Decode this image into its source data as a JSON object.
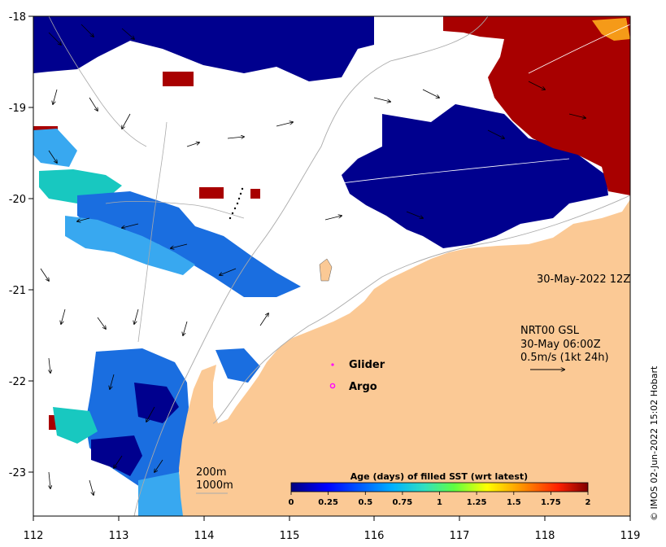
{
  "map": {
    "x_ticks": [
      "112",
      "113",
      "114",
      "115",
      "116",
      "117",
      "118",
      "119"
    ],
    "y_ticks": [
      "-18",
      "-19",
      "-20",
      "-21",
      "-22",
      "-23"
    ],
    "timestamp": "30-May-2022 12Z",
    "current_source": "NRT00 GSL",
    "current_time": "30-May 06:00Z",
    "current_scale": "0.5m/s (1kt 24h)",
    "legend_glider": "Glider",
    "legend_argo": "Argo",
    "contour_200": "200m",
    "contour_1000": "1000m",
    "colorbar_title": "Age (days) of filled SST (wrt latest)",
    "colorbar_ticks": [
      "0",
      "0.25",
      "0.5",
      "0.75",
      "1",
      "1.25",
      "1.5",
      "1.75",
      "2"
    ],
    "credit": "© IMOS 02-Jun-2022 15:02 Hobart"
  },
  "colors": {
    "land": "#fbc995",
    "navy": "#00008e",
    "blue": "#1a6ee0",
    "light_blue": "#38a8f0",
    "cyan": "#18c8c0",
    "dark_red": "#a80000",
    "orange": "#f59a18",
    "glider": "#ff00ff"
  }
}
